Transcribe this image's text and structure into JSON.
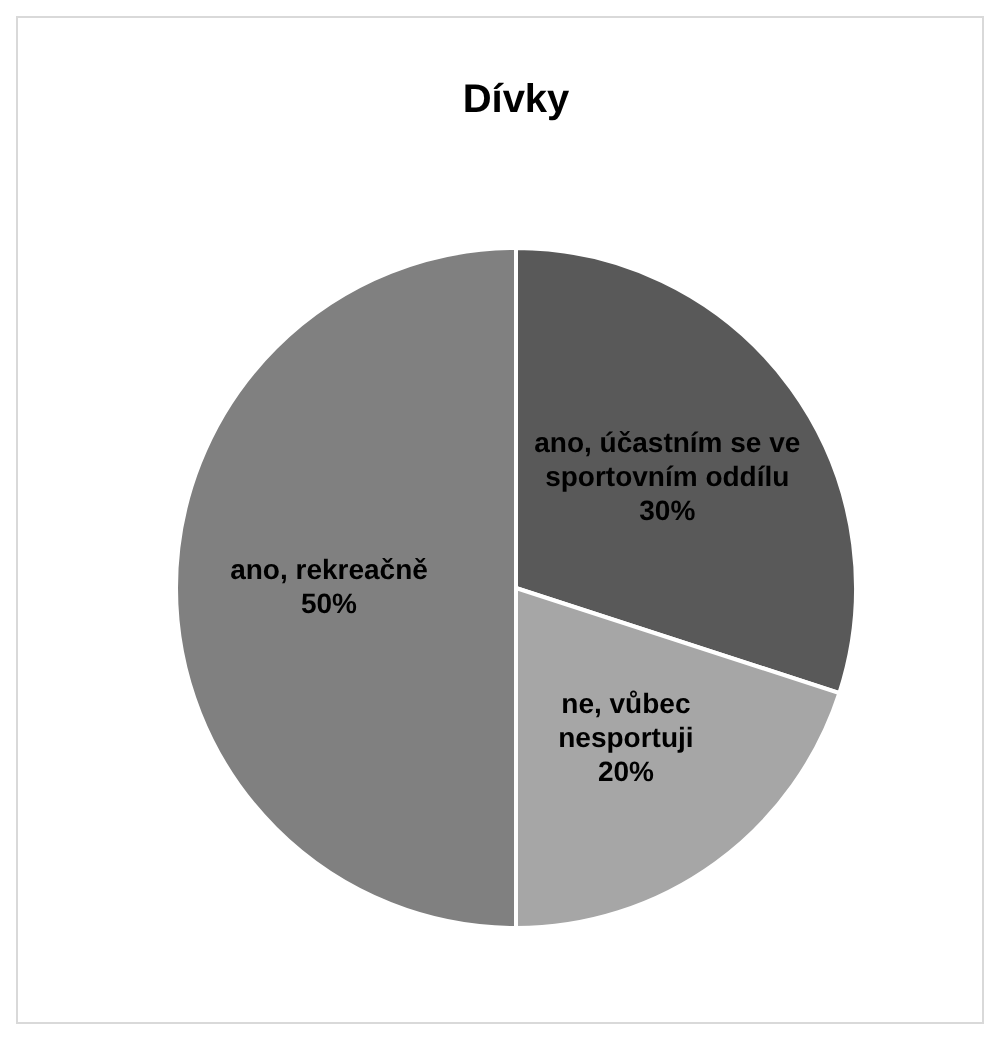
{
  "chart_data": {
    "type": "pie",
    "title": "Dívky",
    "categories": [
      "ano, účastním se ve sportovním oddílu",
      "ne, vůbec nesportuji",
      "ano, rekreačně"
    ],
    "values": [
      30,
      20,
      50
    ],
    "colors": [
      "#595959",
      "#a6a6a6",
      "#808080"
    ],
    "value_labels": [
      "30%",
      "20%",
      "50%"
    ]
  }
}
